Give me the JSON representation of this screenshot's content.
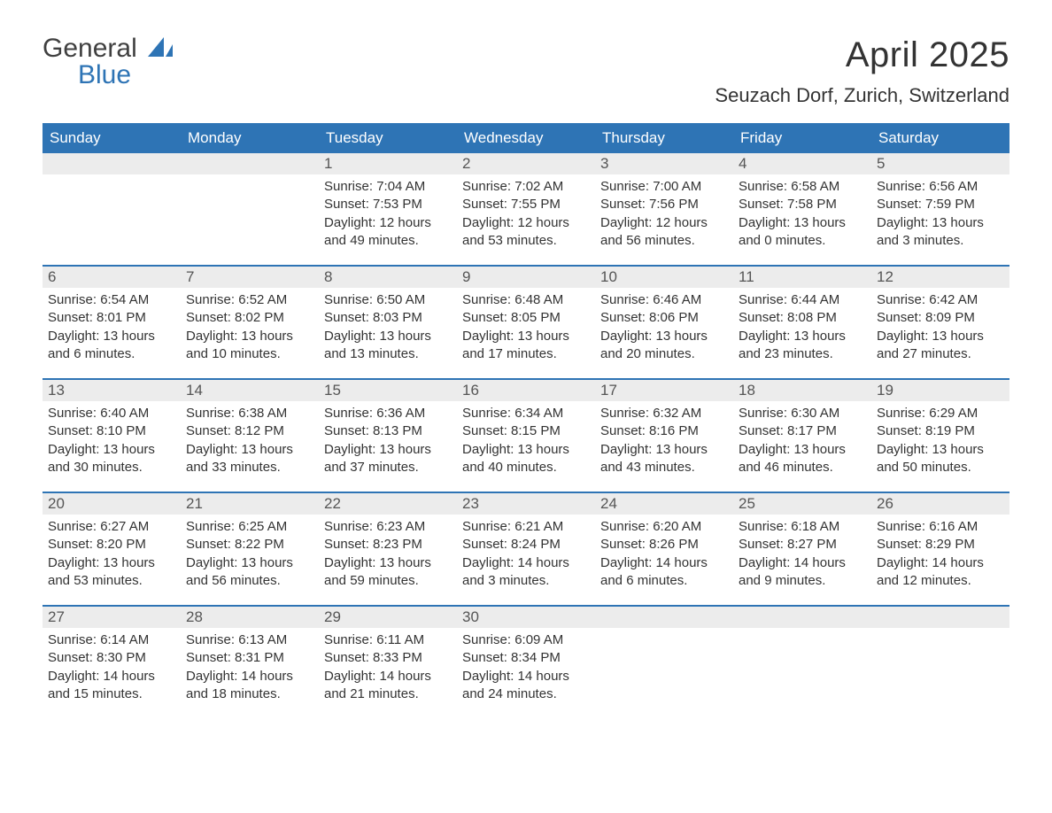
{
  "brand": {
    "general": "General",
    "blue": "Blue",
    "flag_color": "#2e74b5",
    "text_color": "#404040"
  },
  "title": {
    "month": "April 2025",
    "location": "Seuzach Dorf, Zurich, Switzerland"
  },
  "style": {
    "header_bg": "#2e74b5",
    "header_text": "#ffffff",
    "daynum_bg": "#ececec",
    "daynum_text": "#555555",
    "body_text": "#333333",
    "row_border": "#2e74b5",
    "page_bg": "#ffffff",
    "title_fontsize": 40,
    "location_fontsize": 22,
    "dow_fontsize": 17,
    "daynum_fontsize": 17,
    "body_fontsize": 15
  },
  "days_of_week": [
    "Sunday",
    "Monday",
    "Tuesday",
    "Wednesday",
    "Thursday",
    "Friday",
    "Saturday"
  ],
  "weeks": [
    [
      {
        "empty": true
      },
      {
        "empty": true
      },
      {
        "num": "1",
        "sunrise": "Sunrise: 7:04 AM",
        "sunset": "Sunset: 7:53 PM",
        "daylight": "Daylight: 12 hours and 49 minutes."
      },
      {
        "num": "2",
        "sunrise": "Sunrise: 7:02 AM",
        "sunset": "Sunset: 7:55 PM",
        "daylight": "Daylight: 12 hours and 53 minutes."
      },
      {
        "num": "3",
        "sunrise": "Sunrise: 7:00 AM",
        "sunset": "Sunset: 7:56 PM",
        "daylight": "Daylight: 12 hours and 56 minutes."
      },
      {
        "num": "4",
        "sunrise": "Sunrise: 6:58 AM",
        "sunset": "Sunset: 7:58 PM",
        "daylight": "Daylight: 13 hours and 0 minutes."
      },
      {
        "num": "5",
        "sunrise": "Sunrise: 6:56 AM",
        "sunset": "Sunset: 7:59 PM",
        "daylight": "Daylight: 13 hours and 3 minutes."
      }
    ],
    [
      {
        "num": "6",
        "sunrise": "Sunrise: 6:54 AM",
        "sunset": "Sunset: 8:01 PM",
        "daylight": "Daylight: 13 hours and 6 minutes."
      },
      {
        "num": "7",
        "sunrise": "Sunrise: 6:52 AM",
        "sunset": "Sunset: 8:02 PM",
        "daylight": "Daylight: 13 hours and 10 minutes."
      },
      {
        "num": "8",
        "sunrise": "Sunrise: 6:50 AM",
        "sunset": "Sunset: 8:03 PM",
        "daylight": "Daylight: 13 hours and 13 minutes."
      },
      {
        "num": "9",
        "sunrise": "Sunrise: 6:48 AM",
        "sunset": "Sunset: 8:05 PM",
        "daylight": "Daylight: 13 hours and 17 minutes."
      },
      {
        "num": "10",
        "sunrise": "Sunrise: 6:46 AM",
        "sunset": "Sunset: 8:06 PM",
        "daylight": "Daylight: 13 hours and 20 minutes."
      },
      {
        "num": "11",
        "sunrise": "Sunrise: 6:44 AM",
        "sunset": "Sunset: 8:08 PM",
        "daylight": "Daylight: 13 hours and 23 minutes."
      },
      {
        "num": "12",
        "sunrise": "Sunrise: 6:42 AM",
        "sunset": "Sunset: 8:09 PM",
        "daylight": "Daylight: 13 hours and 27 minutes."
      }
    ],
    [
      {
        "num": "13",
        "sunrise": "Sunrise: 6:40 AM",
        "sunset": "Sunset: 8:10 PM",
        "daylight": "Daylight: 13 hours and 30 minutes."
      },
      {
        "num": "14",
        "sunrise": "Sunrise: 6:38 AM",
        "sunset": "Sunset: 8:12 PM",
        "daylight": "Daylight: 13 hours and 33 minutes."
      },
      {
        "num": "15",
        "sunrise": "Sunrise: 6:36 AM",
        "sunset": "Sunset: 8:13 PM",
        "daylight": "Daylight: 13 hours and 37 minutes."
      },
      {
        "num": "16",
        "sunrise": "Sunrise: 6:34 AM",
        "sunset": "Sunset: 8:15 PM",
        "daylight": "Daylight: 13 hours and 40 minutes."
      },
      {
        "num": "17",
        "sunrise": "Sunrise: 6:32 AM",
        "sunset": "Sunset: 8:16 PM",
        "daylight": "Daylight: 13 hours and 43 minutes."
      },
      {
        "num": "18",
        "sunrise": "Sunrise: 6:30 AM",
        "sunset": "Sunset: 8:17 PM",
        "daylight": "Daylight: 13 hours and 46 minutes."
      },
      {
        "num": "19",
        "sunrise": "Sunrise: 6:29 AM",
        "sunset": "Sunset: 8:19 PM",
        "daylight": "Daylight: 13 hours and 50 minutes."
      }
    ],
    [
      {
        "num": "20",
        "sunrise": "Sunrise: 6:27 AM",
        "sunset": "Sunset: 8:20 PM",
        "daylight": "Daylight: 13 hours and 53 minutes."
      },
      {
        "num": "21",
        "sunrise": "Sunrise: 6:25 AM",
        "sunset": "Sunset: 8:22 PM",
        "daylight": "Daylight: 13 hours and 56 minutes."
      },
      {
        "num": "22",
        "sunrise": "Sunrise: 6:23 AM",
        "sunset": "Sunset: 8:23 PM",
        "daylight": "Daylight: 13 hours and 59 minutes."
      },
      {
        "num": "23",
        "sunrise": "Sunrise: 6:21 AM",
        "sunset": "Sunset: 8:24 PM",
        "daylight": "Daylight: 14 hours and 3 minutes."
      },
      {
        "num": "24",
        "sunrise": "Sunrise: 6:20 AM",
        "sunset": "Sunset: 8:26 PM",
        "daylight": "Daylight: 14 hours and 6 minutes."
      },
      {
        "num": "25",
        "sunrise": "Sunrise: 6:18 AM",
        "sunset": "Sunset: 8:27 PM",
        "daylight": "Daylight: 14 hours and 9 minutes."
      },
      {
        "num": "26",
        "sunrise": "Sunrise: 6:16 AM",
        "sunset": "Sunset: 8:29 PM",
        "daylight": "Daylight: 14 hours and 12 minutes."
      }
    ],
    [
      {
        "num": "27",
        "sunrise": "Sunrise: 6:14 AM",
        "sunset": "Sunset: 8:30 PM",
        "daylight": "Daylight: 14 hours and 15 minutes."
      },
      {
        "num": "28",
        "sunrise": "Sunrise: 6:13 AM",
        "sunset": "Sunset: 8:31 PM",
        "daylight": "Daylight: 14 hours and 18 minutes."
      },
      {
        "num": "29",
        "sunrise": "Sunrise: 6:11 AM",
        "sunset": "Sunset: 8:33 PM",
        "daylight": "Daylight: 14 hours and 21 minutes."
      },
      {
        "num": "30",
        "sunrise": "Sunrise: 6:09 AM",
        "sunset": "Sunset: 8:34 PM",
        "daylight": "Daylight: 14 hours and 24 minutes."
      },
      {
        "empty": true
      },
      {
        "empty": true
      },
      {
        "empty": true
      }
    ]
  ]
}
